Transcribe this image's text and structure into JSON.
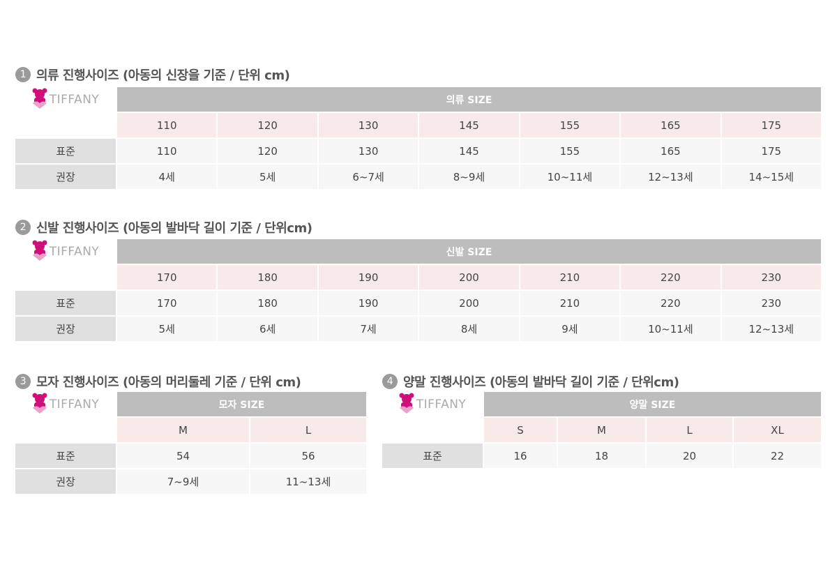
{
  "brand": "TIFFANY",
  "colors": {
    "header": "#bdbdbd",
    "size_row": "#f9eaea",
    "label": "#e0e0e0",
    "value": "#f7f7f7",
    "logo": "#d0107a"
  },
  "sections": [
    {
      "num": "1",
      "title": "의류 진행사이즈 (아동의 신장을 기준 / 단위 cm)",
      "header": "의류 SIZE",
      "sizes": [
        "110",
        "120",
        "130",
        "145",
        "155",
        "165",
        "175"
      ],
      "rows": [
        {
          "label": "표준",
          "values": [
            "110",
            "120",
            "130",
            "145",
            "155",
            "165",
            "175"
          ]
        },
        {
          "label": "권장",
          "values": [
            "4세",
            "5세",
            "6~7세",
            "8~9세",
            "10~11세",
            "12~13세",
            "14~15세"
          ]
        }
      ]
    },
    {
      "num": "2",
      "title": "신발 진행사이즈 (아동의 발바닥 길이 기준 / 단위cm)",
      "header": "신발 SIZE",
      "sizes": [
        "170",
        "180",
        "190",
        "200",
        "210",
        "220",
        "230"
      ],
      "rows": [
        {
          "label": "표준",
          "values": [
            "170",
            "180",
            "190",
            "200",
            "210",
            "220",
            "230"
          ]
        },
        {
          "label": "권장",
          "values": [
            "5세",
            "6세",
            "7세",
            "8세",
            "9세",
            "10~11세",
            "12~13세"
          ]
        }
      ]
    },
    {
      "num": "3",
      "title": "모자 진행사이즈 (아동의 머리둘레 기준 / 단위 cm)",
      "header": "모자 SIZE",
      "sizes": [
        "M",
        "L"
      ],
      "rows": [
        {
          "label": "표준",
          "values": [
            "54",
            "56"
          ]
        },
        {
          "label": "권장",
          "values": [
            "7~9세",
            "11~13세"
          ]
        }
      ]
    },
    {
      "num": "4",
      "title": "양말 진행사이즈 (아동의 발바닥 길이 기준 / 단위cm)",
      "header": "양말 SIZE",
      "sizes": [
        "S",
        "M",
        "L",
        "XL"
      ],
      "rows": [
        {
          "label": "표준",
          "values": [
            "16",
            "18",
            "20",
            "22"
          ]
        }
      ]
    }
  ]
}
